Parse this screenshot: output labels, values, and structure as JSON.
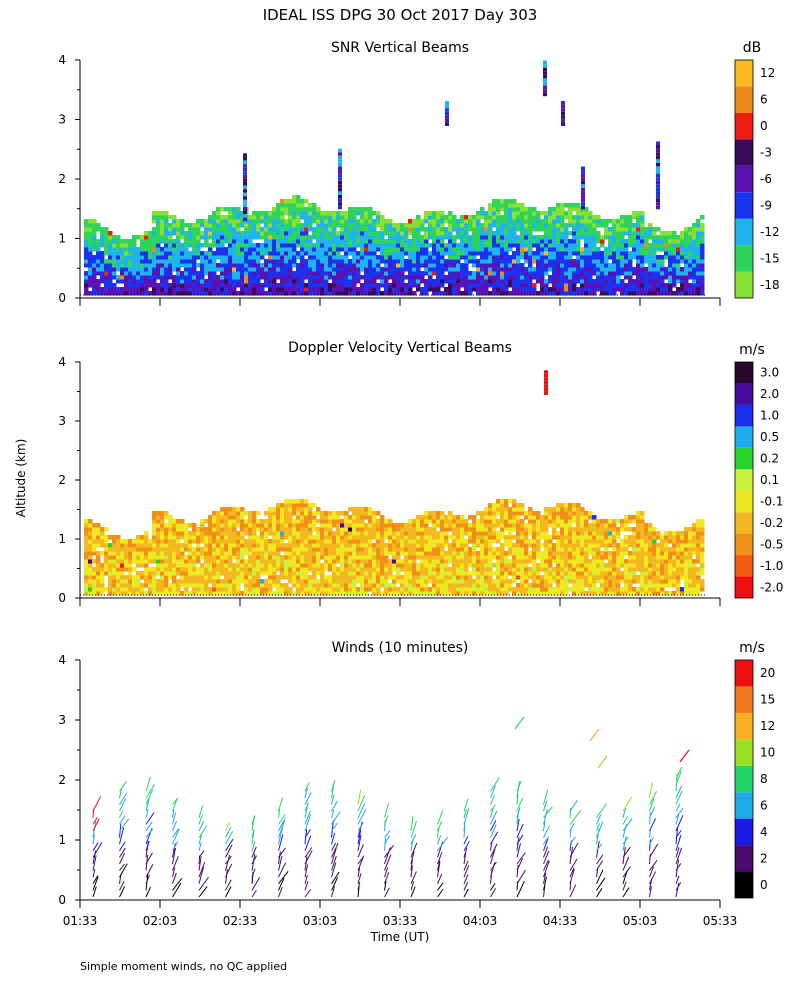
{
  "figure": {
    "title": "IDEAL ISS DPG  30 Oct 2017 Day 303",
    "ylabel": "Altitude (km)",
    "xlabel": "Time (UT)",
    "footnote": "Simple moment winds, no QC applied"
  },
  "chart_data": [
    {
      "type": "heatmap",
      "title": "SNR Vertical Beams",
      "unit": "dB",
      "ylim": [
        0,
        4
      ],
      "yticks": [
        "0",
        "1",
        "2",
        "3",
        "4"
      ],
      "xlim": [
        "01:33",
        "05:33"
      ],
      "colorbar": {
        "labels": [
          "-18",
          "-15",
          "-12",
          "-9",
          "-6",
          "-3",
          "0",
          "6",
          "12"
        ],
        "colors": [
          "#88e035",
          "#2fd45c",
          "#1fb4ee",
          "#1a33f0",
          "#5a12b4",
          "#3a0a5e",
          "#f01c12",
          "#f08a1a",
          "#f8ba20"
        ]
      }
    },
    {
      "type": "heatmap",
      "title": "Doppler Velocity Vertical Beams",
      "unit": "m/s",
      "ylim": [
        0,
        4
      ],
      "yticks": [
        "0",
        "1",
        "2",
        "3",
        "4"
      ],
      "xlim": [
        "01:33",
        "05:33"
      ],
      "colorbar": {
        "labels": [
          "-2.0",
          "-1.0",
          "-0.5",
          "-0.2",
          "-0.1",
          "0.1",
          "0.2",
          "0.5",
          "1.0",
          "2.0",
          "3.0"
        ],
        "colors": [
          "#ee1010",
          "#f45a10",
          "#f09018",
          "#f4b820",
          "#f0e820",
          "#caf23a",
          "#27d42a",
          "#1eaef0",
          "#1a30ee",
          "#4a0a9e",
          "#2a0630"
        ]
      }
    },
    {
      "type": "scatter",
      "title": "Winds (10 minutes)",
      "unit": "m/s",
      "ylim": [
        0,
        4
      ],
      "yticks": [
        "0",
        "1",
        "2",
        "3",
        "4"
      ],
      "xticks": [
        "01:33",
        "02:03",
        "02:33",
        "03:03",
        "03:33",
        "04:03",
        "04:33",
        "05:03",
        "05:33"
      ],
      "colorbar": {
        "labels": [
          "0",
          "2",
          "4",
          "6",
          "8",
          "10",
          "12",
          "15",
          "20"
        ],
        "colors": [
          "#000000",
          "#4a0a6e",
          "#1a1ae6",
          "#1eaae8",
          "#20d46a",
          "#98e020",
          "#f8b020",
          "#f0781a",
          "#ee1010"
        ]
      }
    }
  ]
}
